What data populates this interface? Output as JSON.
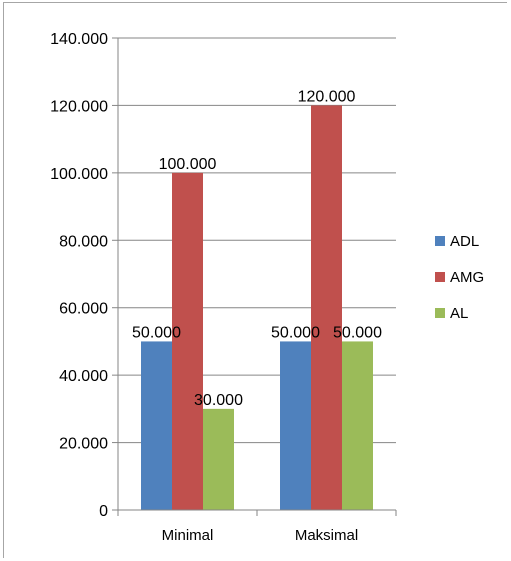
{
  "chart_data": {
    "type": "bar",
    "title": "",
    "xlabel": "",
    "ylabel": "",
    "categories": [
      "Minimal",
      "Maksimal"
    ],
    "series": [
      {
        "name": "ADL",
        "values": [
          50000,
          50000
        ],
        "labels": [
          "50.000",
          "50.000"
        ],
        "color": "#4f81bd"
      },
      {
        "name": "AMG",
        "values": [
          100000,
          120000
        ],
        "labels": [
          "100.000",
          "120.000"
        ],
        "color": "#c0504d"
      },
      {
        "name": "AL",
        "values": [
          30000,
          50000
        ],
        "labels": [
          "30.000",
          "50.000"
        ],
        "color": "#9bbb59"
      }
    ],
    "ylim": [
      0,
      140000
    ],
    "yticks": [
      0,
      20000,
      40000,
      60000,
      80000,
      100000,
      120000,
      140000
    ],
    "ytick_labels": [
      "0",
      "20.000",
      "40.000",
      "60.000",
      "80.000",
      "100.000",
      "120.000",
      "140.000"
    ],
    "grid": true,
    "legend": "right"
  }
}
